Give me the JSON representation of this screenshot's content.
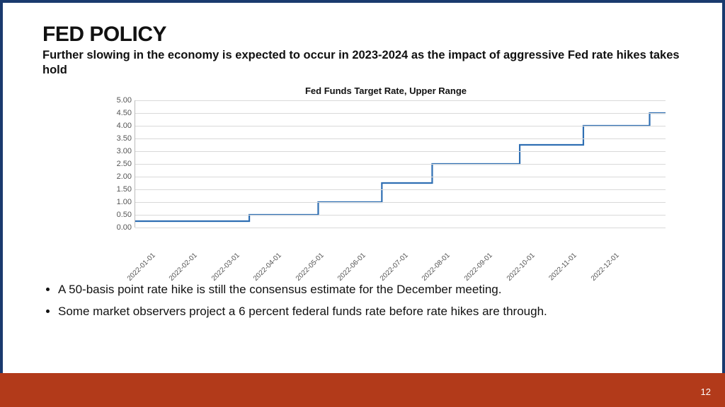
{
  "page_number": "12",
  "title": "FED POLICY",
  "subtitle": "Further slowing in the economy is expected to occur in 2023-2024 as the impact of aggressive Fed rate hikes takes hold",
  "bullets": [
    "A 50-basis point rate hike is still the consensus estimate for the December meeting.",
    "Some market observers project a 6 percent federal funds rate before rate hikes are through."
  ],
  "chart": {
    "type": "step-line",
    "title": "Fed Funds Target Rate, Upper Range",
    "ylim": [
      0.0,
      5.0
    ],
    "ytick_step": 0.5,
    "y_labels": [
      "0.00",
      "0.50",
      "1.00",
      "1.50",
      "2.00",
      "2.50",
      "3.00",
      "3.50",
      "4.00",
      "4.50",
      "5.00"
    ],
    "x_labels": [
      "2022-01-01",
      "2022-02-01",
      "2022-03-01",
      "2022-04-01",
      "2022-05-01",
      "2022-06-01",
      "2022-07-01",
      "2022-08-01",
      "2022-09-01",
      "2022-10-01",
      "2022-11-01",
      "2022-12-01"
    ],
    "series": {
      "color": "#2f6fb3",
      "line_width": 2.2,
      "points": [
        {
          "x": 0.0,
          "y": 0.25
        },
        {
          "x": 0.215,
          "y": 0.25
        },
        {
          "x": 0.215,
          "y": 0.5
        },
        {
          "x": 0.345,
          "y": 0.5
        },
        {
          "x": 0.345,
          "y": 1.0
        },
        {
          "x": 0.465,
          "y": 1.0
        },
        {
          "x": 0.465,
          "y": 1.75
        },
        {
          "x": 0.56,
          "y": 1.75
        },
        {
          "x": 0.56,
          "y": 2.5
        },
        {
          "x": 0.725,
          "y": 2.5
        },
        {
          "x": 0.725,
          "y": 3.25
        },
        {
          "x": 0.845,
          "y": 3.25
        },
        {
          "x": 0.845,
          "y": 4.0
        },
        {
          "x": 0.97,
          "y": 4.0
        },
        {
          "x": 0.97,
          "y": 4.5
        },
        {
          "x": 1.0,
          "y": 4.5
        }
      ]
    },
    "background_color": "#ffffff",
    "grid_color": "#d9d9d9",
    "axis_font_size": 11,
    "title_font_size": 13
  },
  "colors": {
    "slide_border": "#1a3a6e",
    "footer": "#b23a1a",
    "text": "#111111"
  }
}
